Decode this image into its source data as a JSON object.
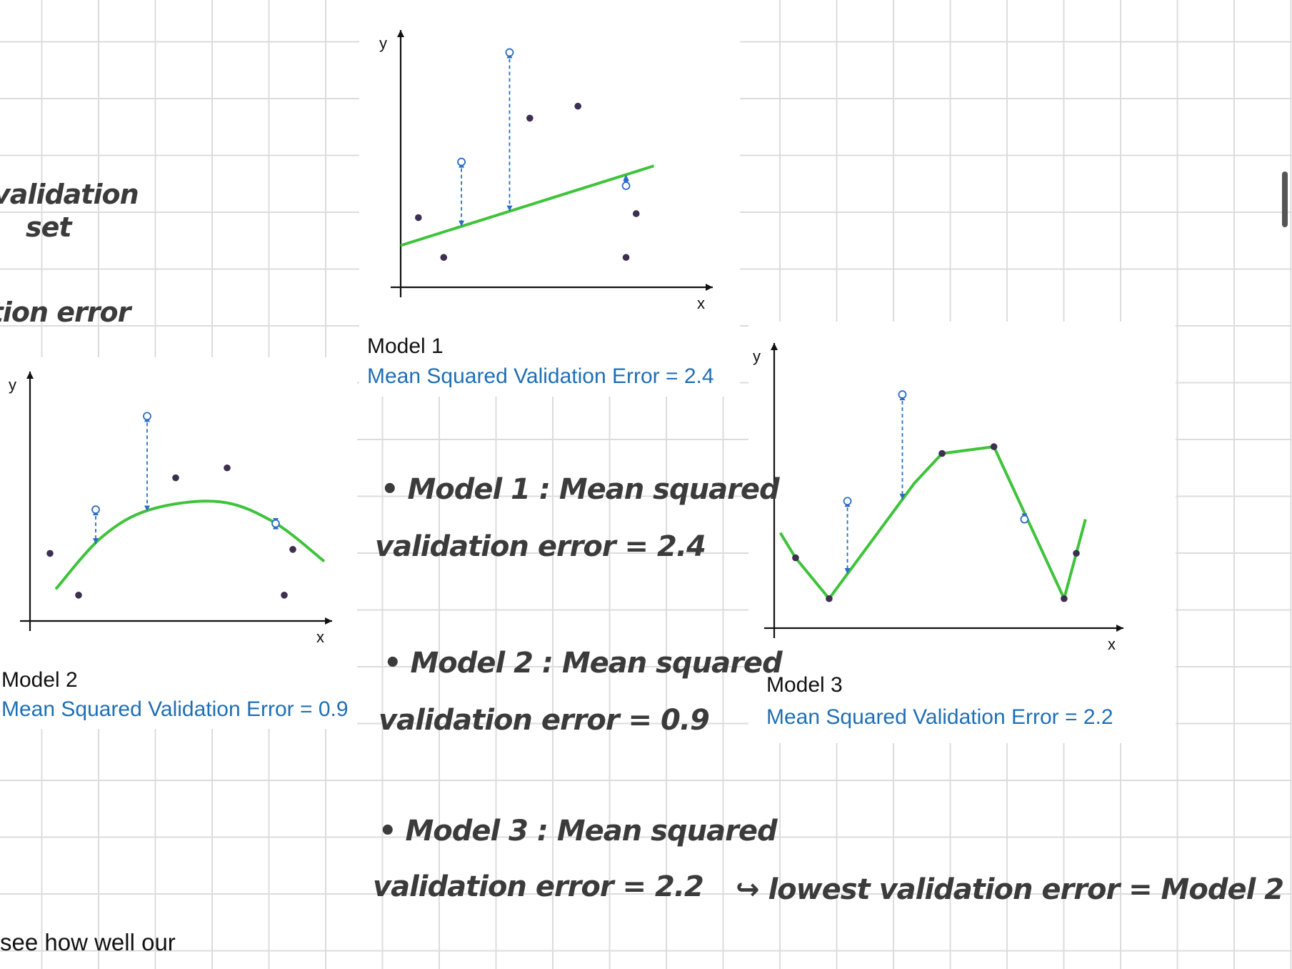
{
  "handwritten": {
    "left_validation_set_line1": "validation",
    "left_validation_set_line2": "set",
    "left_validation_error": "ation error",
    "note_model1_line1": "• Model 1 : Mean squared",
    "note_model1_line2": "validation error  = 2.4",
    "note_model2_line1": "• Model 2 : Mean squared",
    "note_model2_line2": "validation error  = 0.9",
    "note_model3_line1": "• Model 3 : Mean squared",
    "note_model3_line2": "validation error  = 2.2",
    "conclusion": "↪ lowest validation error = Model  2"
  },
  "bottom_text": "see how well our",
  "figures": [
    {
      "title": "Model 1",
      "error_label": "Mean Squared Validation Error = 2.4",
      "x_axis_label": "x",
      "y_axis_label": "y"
    },
    {
      "title": "Model 2",
      "error_label": "Mean Squared Validation Error = 0.9",
      "x_axis_label": "x",
      "y_axis_label": "y"
    },
    {
      "title": "Model 3",
      "error_label": "Mean Squared Validation Error = 2.2",
      "x_axis_label": "x",
      "y_axis_label": "y"
    }
  ],
  "colors": {
    "fit_line": "#3ec33a",
    "residual": "#2b6cc4",
    "point": "#3d2f4f",
    "axis": "#111111",
    "error_text": "#1f6fb5"
  },
  "chart_data": [
    {
      "type": "scatter",
      "title": "Model 1",
      "xlabel": "x",
      "ylabel": "y",
      "model": "linear",
      "fit": [
        [
          0,
          2.1
        ],
        [
          10,
          6.1
        ]
      ],
      "train_points": [
        [
          0.7,
          3.5
        ],
        [
          1.7,
          1.5
        ],
        [
          5.1,
          8.5
        ],
        [
          7.0,
          9.1
        ],
        [
          9.3,
          3.7
        ],
        [
          8.9,
          1.5
        ]
      ],
      "validation_points": [
        {
          "x": 2.4,
          "y": 6.3
        },
        {
          "x": 4.3,
          "y": 11.8
        },
        {
          "x": 8.9,
          "y": 5.1
        }
      ],
      "xlim": [
        0,
        11
      ],
      "ylim": [
        0,
        13
      ]
    },
    {
      "type": "scatter",
      "title": "Model 2",
      "xlabel": "x",
      "ylabel": "y",
      "model": "quadratic",
      "fit": [
        [
          0.9,
          1.6
        ],
        [
          2.5,
          4.2
        ],
        [
          4.2,
          5.6
        ],
        [
          6.6,
          6.0
        ],
        [
          8.5,
          5.0
        ],
        [
          10.3,
          3.0
        ]
      ],
      "train_points": [
        [
          0.7,
          3.4
        ],
        [
          1.7,
          1.3
        ],
        [
          5.1,
          7.2
        ],
        [
          6.9,
          7.7
        ],
        [
          9.2,
          3.6
        ],
        [
          8.9,
          1.3
        ]
      ],
      "validation_points": [
        {
          "x": 2.3,
          "y": 5.6
        },
        {
          "x": 4.1,
          "y": 10.3
        },
        {
          "x": 8.6,
          "y": 4.9
        }
      ],
      "xlim": [
        0,
        10.5
      ],
      "ylim": [
        0,
        11.5
      ]
    },
    {
      "type": "line",
      "title": "Model 3",
      "xlabel": "x",
      "ylabel": "y",
      "model": "interpolating",
      "fit": [
        [
          0.2,
          4.2
        ],
        [
          0.7,
          3.1
        ],
        [
          1.8,
          1.3
        ],
        [
          4.6,
          6.4
        ],
        [
          5.5,
          7.7
        ],
        [
          7.2,
          8.0
        ],
        [
          9.5,
          1.3
        ],
        [
          9.9,
          3.3
        ],
        [
          10.2,
          4.8
        ]
      ],
      "train_points": [
        [
          0.7,
          3.1
        ],
        [
          1.8,
          1.3
        ],
        [
          5.5,
          7.7
        ],
        [
          7.2,
          8.0
        ],
        [
          9.5,
          1.3
        ],
        [
          9.9,
          3.3
        ]
      ],
      "validation_points": [
        {
          "x": 2.4,
          "y": 5.6
        },
        {
          "x": 4.2,
          "y": 10.3
        },
        {
          "x": 8.2,
          "y": 4.8
        }
      ],
      "xlim": [
        0,
        11
      ],
      "ylim": [
        0,
        11.5
      ]
    }
  ]
}
